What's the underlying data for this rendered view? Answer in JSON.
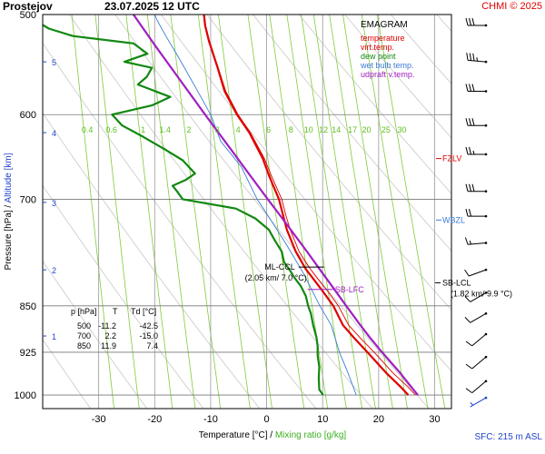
{
  "header": {
    "station": "Prostejov",
    "datetime": "23.07.2025 12 UTC",
    "credit": "CHMI © 2025"
  },
  "footer": {
    "sfc": "SFC: 215 m ASL"
  },
  "chart_data": {
    "type": "line",
    "subtype": "emagram",
    "xlabel": [
      "Temperature [°C]",
      " / ",
      "Mixing ratio [g/kg]"
    ],
    "ylabel": [
      "Pressure [hPa]",
      " / ",
      "Altitude [km]"
    ],
    "xlim": [
      -40,
      33
    ],
    "ylim": [
      1025,
      500
    ],
    "y_scale": "log",
    "x_ticks": [
      -30,
      -20,
      -10,
      0,
      10,
      20,
      30
    ],
    "pressure_ticks": [
      500,
      600,
      700,
      850,
      925,
      1000
    ],
    "altitude_ticks": [
      {
        "km": "1",
        "p": 898
      },
      {
        "km": "2",
        "p": 796
      },
      {
        "km": "3",
        "p": 704
      },
      {
        "km": "4",
        "p": 620
      },
      {
        "km": "5",
        "p": 545
      }
    ],
    "mixing_ratio_labels": [
      "0.4",
      "0.6",
      "1",
      "1.4",
      "2",
      "3",
      "4",
      "6",
      "8",
      "10",
      "12",
      "14",
      "17",
      "20",
      "25",
      "30"
    ],
    "legend": {
      "title": "EMAGRAM",
      "entries": [
        {
          "label": "temperature",
          "color": "#e00000"
        },
        {
          "label": "virt.temp.",
          "color": "#e00000"
        },
        {
          "label": "dew point",
          "color": "#118811"
        },
        {
          "label": "wet bulb temp.",
          "color": "#3a7bd5"
        },
        {
          "label": "udpraft v.temp.",
          "color": "#a020c0"
        }
      ],
      "position": "top-right"
    },
    "series": [
      {
        "name": "temperature",
        "color": "#e00000",
        "points": [
          [
            1000,
            25.3
          ],
          [
            985,
            23.9
          ],
          [
            960,
            21.3
          ],
          [
            925,
            18.0
          ],
          [
            900,
            15.5
          ],
          [
            880,
            13.6
          ],
          [
            850,
            11.9
          ],
          [
            830,
            10.2
          ],
          [
            810,
            8.4
          ],
          [
            795,
            7.0
          ],
          [
            770,
            5.2
          ],
          [
            740,
            3.6
          ],
          [
            720,
            2.9
          ],
          [
            700,
            2.2
          ],
          [
            670,
            0.4
          ],
          [
            650,
            -0.7
          ],
          [
            620,
            -3.1
          ],
          [
            600,
            -5.3
          ],
          [
            575,
            -7.5
          ],
          [
            550,
            -8.8
          ],
          [
            525,
            -10.3
          ],
          [
            510,
            -11.0
          ],
          [
            500,
            -11.2
          ]
        ]
      },
      {
        "name": "virt.temp.",
        "color": "#e00000",
        "points": [
          [
            1000,
            26.6
          ],
          [
            985,
            25.2
          ],
          [
            960,
            22.5
          ],
          [
            925,
            19.2
          ],
          [
            900,
            16.6
          ],
          [
            880,
            14.6
          ],
          [
            850,
            12.8
          ],
          [
            830,
            11.1
          ],
          [
            810,
            9.2
          ],
          [
            795,
            7.8
          ],
          [
            770,
            5.8
          ],
          [
            740,
            4.2
          ],
          [
            720,
            3.4
          ],
          [
            700,
            2.7
          ],
          [
            670,
            0.8
          ],
          [
            650,
            -0.4
          ],
          [
            620,
            -2.9
          ],
          [
            600,
            -5.1
          ],
          [
            575,
            -7.3
          ],
          [
            550,
            -8.7
          ],
          [
            525,
            -10.2
          ],
          [
            510,
            -10.9
          ],
          [
            500,
            -11.1
          ]
        ]
      },
      {
        "name": "dew point",
        "color": "#118811",
        "points": [
          [
            1000,
            10.1
          ],
          [
            990,
            9.4
          ],
          [
            970,
            9.3
          ],
          [
            950,
            9.4
          ],
          [
            930,
            9.1
          ],
          [
            915,
            9.1
          ],
          [
            900,
            8.9
          ],
          [
            880,
            8.3
          ],
          [
            862,
            7.9
          ],
          [
            850,
            7.4
          ],
          [
            835,
            7.0
          ],
          [
            820,
            6.1
          ],
          [
            808,
            5.0
          ],
          [
            796,
            4.1
          ],
          [
            785,
            3.1
          ],
          [
            770,
            2.7
          ],
          [
            755,
            1.5
          ],
          [
            740,
            0.4
          ],
          [
            725,
            -2.0
          ],
          [
            712,
            -5.5
          ],
          [
            700,
            -15.0
          ],
          [
            690,
            -16.0
          ],
          [
            683,
            -16.8
          ],
          [
            676,
            -14.5
          ],
          [
            668,
            -12.8
          ],
          [
            652,
            -15.0
          ],
          [
            640,
            -18.0
          ],
          [
            625,
            -22.0
          ],
          [
            612,
            -25.8
          ],
          [
            600,
            -27.6
          ],
          [
            590,
            -20.5
          ],
          [
            581,
            -17.2
          ],
          [
            568,
            -23.0
          ],
          [
            560,
            -21.4
          ],
          [
            551,
            -20.5
          ],
          [
            545,
            -25.4
          ],
          [
            537,
            -21.3
          ],
          [
            527,
            -23.8
          ],
          [
            520,
            -34.6
          ],
          [
            513,
            -38.9
          ],
          [
            505,
            -41.5
          ],
          [
            500,
            -42.5
          ]
        ]
      },
      {
        "name": "wet bulb temp.",
        "color": "#3a7bd5",
        "points": [
          [
            1000,
            16.0
          ],
          [
            960,
            14.5
          ],
          [
            925,
            13.0
          ],
          [
            880,
            11.5
          ],
          [
            850,
            9.5
          ],
          [
            800,
            6.5
          ],
          [
            760,
            3.5
          ],
          [
            730,
            1.0
          ],
          [
            700,
            -1.7
          ],
          [
            660,
            -4.5
          ],
          [
            630,
            -8.2
          ],
          [
            600,
            -10.0
          ],
          [
            570,
            -12.8
          ],
          [
            540,
            -15.8
          ],
          [
            520,
            -18.0
          ],
          [
            505,
            -19.6
          ],
          [
            500,
            -20.0
          ]
        ]
      },
      {
        "name": "udpraft v.temp.",
        "color": "#a020c0",
        "points": [
          [
            1000,
            27.0
          ],
          [
            985,
            25.8
          ],
          [
            960,
            23.8
          ],
          [
            925,
            20.6
          ],
          [
            900,
            18.4
          ],
          [
            880,
            16.7
          ],
          [
            850,
            14.2
          ],
          [
            825,
            12.1
          ],
          [
            800,
            9.9
          ],
          [
            770,
            7.2
          ],
          [
            740,
            4.3
          ],
          [
            720,
            2.3
          ],
          [
            700,
            0.2
          ],
          [
            670,
            -3.0
          ],
          [
            640,
            -6.3
          ],
          [
            600,
            -11.0
          ],
          [
            560,
            -15.9
          ],
          [
            530,
            -19.8
          ],
          [
            500,
            -23.8
          ]
        ]
      }
    ],
    "table": {
      "headers": [
        "p [hPa]",
        "T",
        "Td [°C]"
      ],
      "rows": [
        [
          "500",
          "-11.2",
          "-42.5"
        ],
        [
          "700",
          "2.2",
          "-15.0"
        ],
        [
          "850",
          "11.9",
          "7.4"
        ]
      ]
    },
    "annotations": [
      {
        "label": "FZLV",
        "p": 650,
        "color": "#e00000"
      },
      {
        "label": "WBZL",
        "p": 727,
        "color": "#3a7bd5"
      },
      {
        "label": "SB-LFC",
        "p": 825,
        "t": 8.3,
        "color": "#a020c0"
      },
      {
        "label": "ML-CCL",
        "sub": "(2.05 km/ 7.0 °C)",
        "p": 792,
        "t": 7.0,
        "color": "#000000"
      },
      {
        "label": "SB-LCL",
        "sub": "(1.82 km/ 9.9 °C)",
        "p": 815,
        "color": "#000000"
      }
    ],
    "wind_barbs": [
      {
        "p": 510,
        "dir": 270,
        "kt": 30
      },
      {
        "p": 545,
        "dir": 275,
        "kt": 35
      },
      {
        "p": 575,
        "dir": 270,
        "kt": 30
      },
      {
        "p": 612,
        "dir": 270,
        "kt": 30
      },
      {
        "p": 645,
        "dir": 270,
        "kt": 25
      },
      {
        "p": 690,
        "dir": 270,
        "kt": 30
      },
      {
        "p": 722,
        "dir": 270,
        "kt": 20
      },
      {
        "p": 758,
        "dir": 265,
        "kt": 15
      },
      {
        "p": 796,
        "dir": 250,
        "kt": 10
      },
      {
        "p": 830,
        "dir": 240,
        "kt": 10
      },
      {
        "p": 862,
        "dir": 240,
        "kt": 10
      },
      {
        "p": 895,
        "dir": 230,
        "kt": 10
      },
      {
        "p": 933,
        "dir": 230,
        "kt": 10
      },
      {
        "p": 975,
        "dir": 230,
        "kt": 10
      },
      {
        "p": 1005,
        "dir": 240,
        "kt": 5
      }
    ],
    "colors": {
      "isobar": "#777777",
      "isotherm": "#999999",
      "dry_adiabat": "#c8c8c8",
      "mixing_ratio": "#7fcc3a",
      "altitude": "#2244cc",
      "wind": "#000000",
      "surface_wind": "#1a3ccc"
    }
  }
}
